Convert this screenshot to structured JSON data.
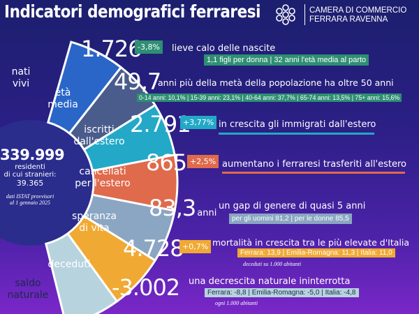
{
  "title": "Indicatori demografici ferraresi",
  "org": {
    "line1": "CAMERA DI COMMERCIO",
    "line2": "FERRARA RAVENNA",
    "logo_icon": "flower-logo-icon"
  },
  "center": {
    "total": "339.999",
    "line1": "residenti",
    "line2": "di cui stranieri:",
    "line3": "39.365",
    "note1": "dati ISTAT provvisori",
    "note2": "al 1 gennaio 2025"
  },
  "segments": [
    {
      "label1": "nati",
      "label2": "vivi",
      "color": "#2a66c8"
    },
    {
      "label1": "età",
      "label2": "media",
      "color": "#4a5c8c"
    },
    {
      "label1": "iscritti",
      "label2": "dall'estero",
      "color": "#23a9c7"
    },
    {
      "label1": "cancellati",
      "label2": "per l'estero",
      "color": "#e06a4c"
    },
    {
      "label1": "speranza",
      "label2": "di vita",
      "color": "#8aa6c2"
    },
    {
      "label1": "deceduti",
      "label2": "",
      "color": "#f0a932"
    },
    {
      "label1": "saldo",
      "label2": "naturale",
      "color": "#b7d3de"
    }
  ],
  "rows": [
    {
      "value": "1.726",
      "badge": "-3,8%",
      "badge_color": "#2e8f73",
      "desc": "lieve calo delle nascite",
      "pill": "1,1 figli per donna  |  32 anni l'età media al parto",
      "pill_bg": "#2e8f73"
    },
    {
      "value": "49,7",
      "desc": "anni più della metà della popolazione ha oltre 50 anni",
      "pill": "0-14 anni: 10,1%  |  15-39 anni: 23,1%  |  40-64 anni: 37,7%  |  65-74 anni: 13,5%  |  75+ anni: 15,6%",
      "pill_bg": "#2e8f73"
    },
    {
      "value": "2.791",
      "badge": "+3,77%",
      "badge_color": "#23a9c7",
      "desc": "in crescita gli immigrati dall'estero",
      "underline_color": "#23a9c7"
    },
    {
      "value": "865",
      "badge": "+2,5%",
      "badge_color": "#e06a4c",
      "desc": "aumentano i ferraresi trasferiti all'estero",
      "underline_color": "#e06a4c"
    },
    {
      "value": "83,3",
      "unit": "anni",
      "desc": "un gap di genere di quasi 5 anni",
      "pill": "per gli uomini 81,2  |  per le donne 85,5",
      "pill_bg": "#8aa6c2"
    },
    {
      "value": "4.728",
      "badge": "+0,7%",
      "badge_color": "#f0a932",
      "desc": "mortalità in crescita tra le più elevate d'Italia",
      "pill": "Ferrara: 13,9  |  Emilia-Romagna: 11,3  |  Italia: 11,0",
      "pill_bg": "#f0a932",
      "note": "deceduti su 1.000 abitanti"
    },
    {
      "value": "-3.002",
      "desc": "una decrescita naturale ininterrotta",
      "pill": "Ferrara: -8,8  |  Emilia-Romagna: -5,0  |  Italia: -4,8",
      "pill_bg": "#b7d3de",
      "note": "ogni 1.000 abitanti"
    }
  ]
}
